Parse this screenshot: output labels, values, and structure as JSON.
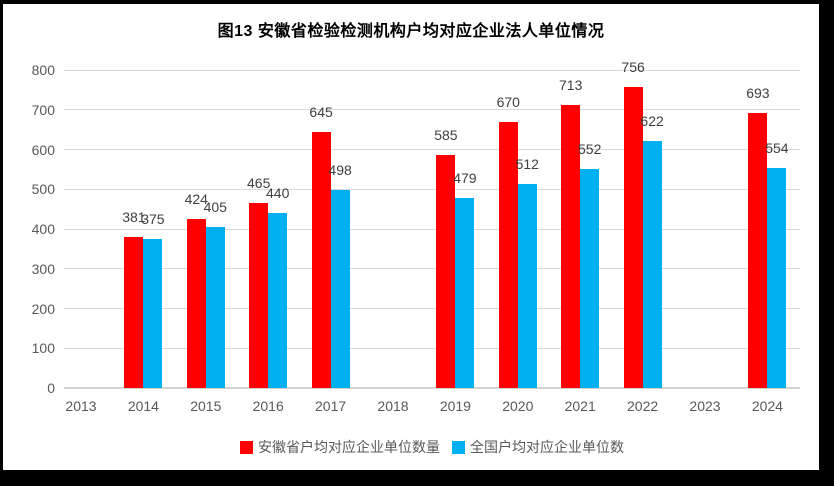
{
  "chart_data": {
    "type": "bar",
    "title": "图13 安徽省检验检测机构户均对应企业法人单位情况",
    "categories": [
      "2013",
      "2014",
      "2015",
      "2016",
      "2017",
      "2018",
      "2019",
      "2020",
      "2021",
      "2022",
      "2023",
      "2024"
    ],
    "series": [
      {
        "name": "安徽省户均对应企业单位数量",
        "color": "#FF0000",
        "values": [
          null,
          381,
          424,
          465,
          645,
          null,
          585,
          670,
          713,
          756,
          null,
          693
        ]
      },
      {
        "name": "全国户均对应企业单位数",
        "color": "#00B0F0",
        "values": [
          null,
          375,
          405,
          440,
          498,
          null,
          479,
          512,
          552,
          622,
          null,
          554
        ]
      }
    ],
    "ylim": [
      0,
      800
    ],
    "ytick_step": 100,
    "grid": "horizontal",
    "legend_position": "bottom",
    "data_labels": true
  },
  "colors": {
    "gridline": "#d9d9d9",
    "axis_line": "#d3d3d3",
    "tick_label": "#595959",
    "data_label": "#404040",
    "title": "#000000",
    "frame_border": "#000000",
    "background": "#ffffff"
  }
}
